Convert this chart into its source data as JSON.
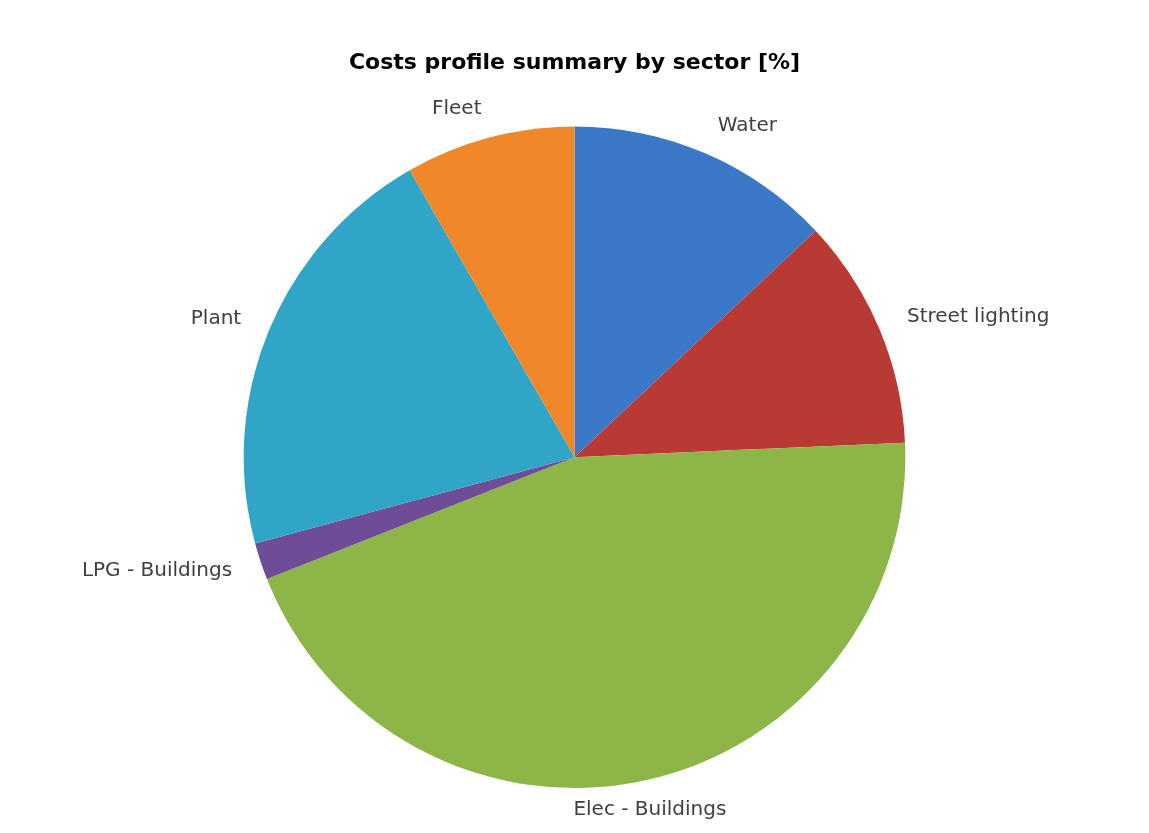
{
  "chart_data": {
    "type": "pie",
    "title": "Costs profile summary by sector [%]",
    "categories": [
      "Water",
      "Street lighting",
      "Elec - Buildings",
      "LPG - Buildings",
      "Plant",
      "Fleet"
    ],
    "values": [
      13,
      11.3,
      44.7,
      1.8,
      20.9,
      8.3
    ],
    "colors": [
      "#3b78c8",
      "#b93a35",
      "#8db548",
      "#6e4c96",
      "#30a5c7",
      "#f0872a"
    ],
    "legend": false
  }
}
